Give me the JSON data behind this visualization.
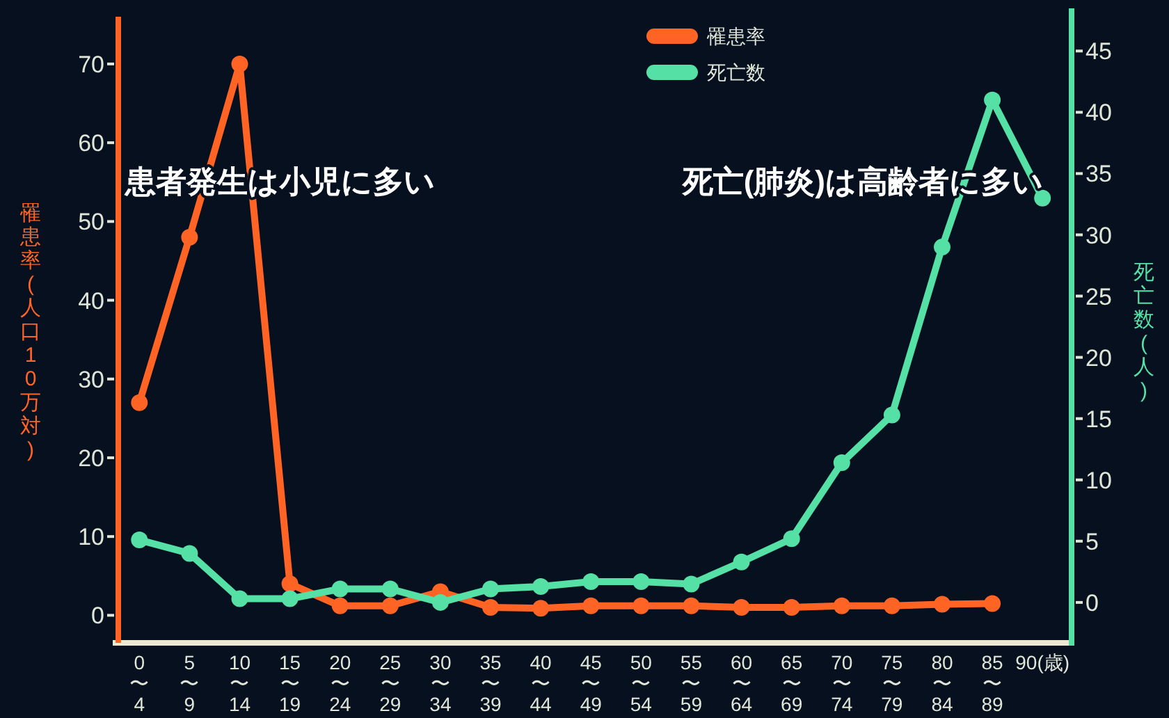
{
  "chart_data": {
    "type": "line",
    "ylabel": "罹患率(人口10万対)",
    "y2label": "死亡数(人)",
    "annotations": [
      "患者発生は小児に多い",
      "死亡(肺炎)は高齢者に多い"
    ],
    "categories": [
      "0〜4",
      "5〜9",
      "10〜14",
      "15〜19",
      "20〜24",
      "25〜29",
      "30〜34",
      "35〜39",
      "40〜44",
      "45〜49",
      "50〜54",
      "55〜59",
      "60〜64",
      "65〜69",
      "70〜74",
      "75〜79",
      "80〜84",
      "85〜89",
      "90(歳)"
    ],
    "ylim": [
      -3.5,
      76
    ],
    "yticks": [
      0,
      10,
      20,
      30,
      40,
      50,
      60,
      70
    ],
    "y2lim": [
      -3.3,
      47.8
    ],
    "y2ticks": [
      0,
      5,
      10,
      15,
      20,
      25,
      30,
      35,
      40,
      45
    ],
    "legend": "top",
    "marker": "circle",
    "line_style": "solid",
    "grid": false,
    "series": [
      {
        "name": "罹患率",
        "color": "#ff6424",
        "values": [
          27,
          48,
          70,
          4,
          1.2,
          1.2,
          3,
          1,
          0.9,
          1.2,
          1.2,
          1.2,
          1,
          1,
          1.2,
          1.2,
          1.4,
          1.5,
          null
        ]
      },
      {
        "name": "死亡数",
        "color": "#55e0a5",
        "axis": "y2",
        "values": [
          5.1,
          4,
          0.3,
          0.3,
          1.1,
          1.1,
          0,
          1.1,
          1.3,
          1.7,
          1.7,
          1.5,
          3.3,
          5.2,
          11.4,
          15.3,
          29,
          41,
          33
        ]
      }
    ]
  }
}
